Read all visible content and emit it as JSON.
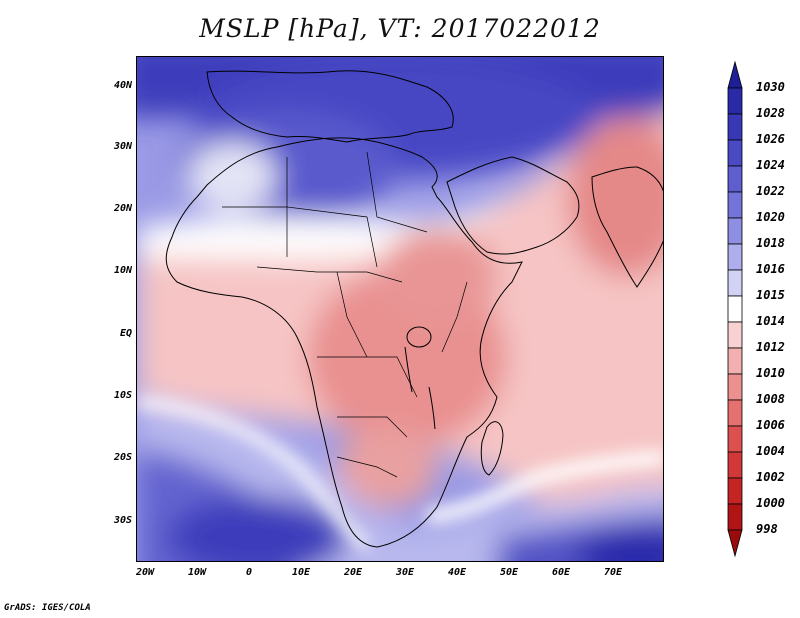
{
  "title": "MSLP [hPa], VT: 2017022012",
  "footer": "GrADS: IGES/COLA",
  "lat_labels": [
    "40N",
    "30N",
    "20N",
    "10N",
    "EQ",
    "10S",
    "20S",
    "30S"
  ],
  "lon_labels": [
    "20W",
    "10W",
    "0",
    "10E",
    "20E",
    "30E",
    "40E",
    "50E",
    "60E",
    "70E"
  ],
  "colorbar": {
    "labels": [
      "1030",
      "1028",
      "1026",
      "1024",
      "1022",
      "1020",
      "1018",
      "1016",
      "1015",
      "1014",
      "1012",
      "1010",
      "1008",
      "1006",
      "1004",
      "1002",
      "1000",
      "998"
    ],
    "colors": [
      "#1e1e96",
      "#2a2aa8",
      "#3838b6",
      "#4a4ac4",
      "#5e5ecf",
      "#7474d8",
      "#8e8ee2",
      "#aeaeec",
      "#d2d2f5",
      "#ffffff",
      "#f8d2d2",
      "#f2b0b0",
      "#ec9090",
      "#e47070",
      "#dc5050",
      "#d33838",
      "#c42424",
      "#b01414",
      "#9a0c0c"
    ]
  },
  "colors": {
    "land_outline": "#000000",
    "frame": "#000000"
  }
}
